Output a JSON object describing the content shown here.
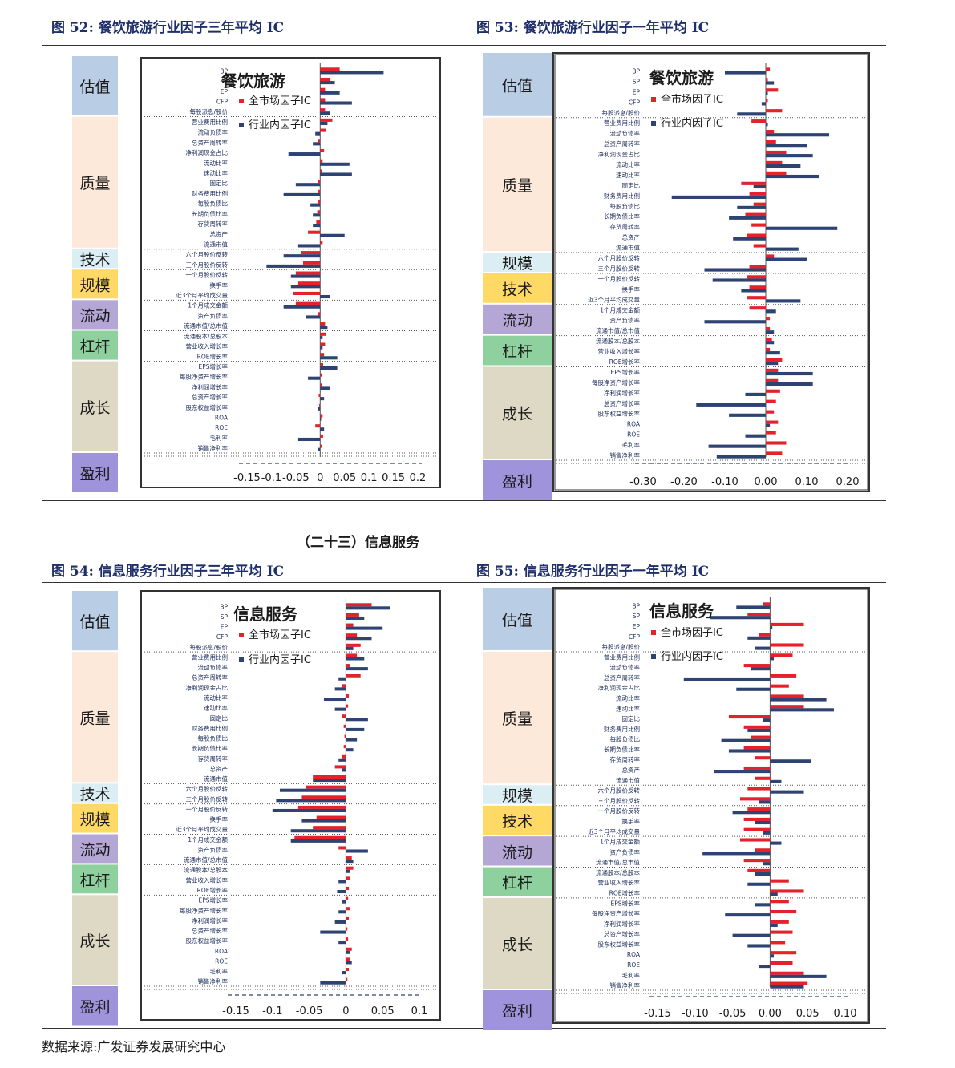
{
  "fig52": {
    "title": "图  52:  餐饮旅游行业因子三年平均 IC"
  },
  "fig53": {
    "title": "图  53:  餐饮旅游行业因子一年平均 IC"
  },
  "fig54": {
    "title": "图  54:  信息服务行业因子三年平均 IC"
  },
  "fig55": {
    "title": "图  55:  信息服务行业因子一年平均 IC"
  },
  "section_title": "（二十三）信息服务",
  "source": "数据来源:广发证券发展研究中心",
  "colors": {
    "series_market": "#e3222c",
    "series_industry": "#2e4372",
    "axis": "#333333",
    "tick": "#1a2a5a"
  },
  "chart_data": [
    {
      "type": "bar",
      "orientation": "horizontal",
      "title": "餐饮旅游",
      "legend": [
        "全市场因子IC",
        "行业内因子IC"
      ],
      "legend_position": "top-center",
      "xlim": [
        -0.15,
        0.2
      ],
      "xticks": [
        -0.15,
        -0.1,
        -0.05,
        0,
        0.05,
        0.1,
        0.15,
        0.2
      ],
      "xtick_labels": [
        "-0.15",
        "-0.1",
        "-0.05",
        "0",
        "0.05",
        "0.1",
        "0.15",
        "0.2"
      ],
      "groups": [
        {
          "name": "估值",
          "color": "#b9cde5",
          "count": 5
        },
        {
          "name": "质量",
          "color": "#fde9d9",
          "count": 13
        },
        {
          "name": "技术",
          "color": "#dbeef4",
          "count": 2
        },
        {
          "name": "规模",
          "color": "#ffd966",
          "count": 3
        },
        {
          "name": "流动",
          "color": "#b4a7d6",
          "count": 3
        },
        {
          "name": "杠杆",
          "color": "#8fd19e",
          "count": 3
        },
        {
          "name": "成长",
          "color": "#ddd9c4",
          "count": 9
        },
        {
          "name": "盈利",
          "color": "#9f94dc",
          "count": 4
        }
      ],
      "categories": [
        "BP",
        "SP",
        "EP",
        "CFP",
        "每股派息/股价",
        "营业费用比例",
        "流动负债率",
        "总资产周转率",
        "净利润现金占比",
        "流动比率",
        "速动比率",
        "固定比",
        "财务费用比例",
        "每股负债比",
        "长期负债比率",
        "存货周转率",
        "总资产",
        "流通市值",
        "六个月股价反转",
        "三个月股价反转",
        "一个月股价反转",
        "换手率",
        "近3个月平均成交量",
        "1个月成交金额",
        "资产负债率",
        "流通市值/总市值",
        "流通股本/总股本",
        "营业收入增长率",
        "ROE增长率",
        "EPS增长率",
        "每股净资产增长率",
        "净利润增长率",
        "总资产增长率",
        "股东权益增长率",
        "ROA",
        "ROE",
        "毛利率",
        "销售净利率"
      ],
      "series": [
        {
          "name": "全市场因子IC",
          "values": [
            0.04,
            0.02,
            0.01,
            0.01,
            0.01,
            0.025,
            0.012,
            -0.005,
            0.008,
            0.005,
            0.004,
            -0.004,
            -0.005,
            -0.004,
            -0.006,
            -0.008,
            -0.025,
            0.005,
            -0.04,
            -0.035,
            -0.05,
            -0.045,
            -0.055,
            -0.05,
            -0.005,
            0.01,
            0.012,
            0.01,
            0.008,
            0.006,
            0.004,
            0.003,
            -0.003,
            -0.002,
            0.005,
            -0.01,
            0.006,
            0.003
          ]
        },
        {
          "name": "行业内因子IC",
          "values": [
            0.13,
            0.03,
            0.04,
            0.065,
            0.02,
            0.015,
            -0.01,
            -0.015,
            -0.065,
            0.06,
            0.065,
            -0.05,
            -0.075,
            -0.02,
            -0.015,
            -0.015,
            0.05,
            -0.045,
            -0.075,
            -0.11,
            -0.06,
            -0.06,
            0.02,
            -0.075,
            -0.03,
            0.015,
            0.005,
            0.005,
            0.035,
            0.035,
            -0.025,
            0.02,
            0.008,
            -0.005,
            0.002,
            0.008,
            -0.045,
            -0.005
          ]
        }
      ]
    },
    {
      "type": "bar",
      "orientation": "horizontal",
      "title": "餐饮旅游",
      "legend": [
        "全市场因子IC",
        "行业内因子IC"
      ],
      "legend_position": "top-center",
      "xlim": [
        -0.3,
        0.2
      ],
      "xticks": [
        -0.3,
        -0.2,
        -0.1,
        0,
        0.1,
        0.2
      ],
      "xtick_labels": [
        "-0.30",
        "-0.20",
        "-0.10",
        "0.00",
        "0.10",
        "0.20"
      ],
      "groups": [
        {
          "name": "估值",
          "color": "#b9cde5",
          "count": 5
        },
        {
          "name": "质量",
          "color": "#fde9d9",
          "count": 13
        },
        {
          "name": "规模",
          "color": "#dbeef4",
          "count": 2
        },
        {
          "name": "技术",
          "color": "#ffd966",
          "count": 3
        },
        {
          "name": "流动",
          "color": "#b4a7d6",
          "count": 3
        },
        {
          "name": "杠杆",
          "color": "#8fd19e",
          "count": 3
        },
        {
          "name": "成长",
          "color": "#ddd9c4",
          "count": 9
        },
        {
          "name": "盈利",
          "color": "#9f94dc",
          "count": 4
        }
      ],
      "categories": [
        "BP",
        "SP",
        "EP",
        "CFP",
        "每股派息/股价",
        "营业费用比例",
        "流动负债率",
        "总资产周转率",
        "净利润现金占比",
        "流动比率",
        "速动比率",
        "固定比",
        "财务费用比例",
        "每股负债比",
        "长期负债比率",
        "存货周转率",
        "总资产",
        "流通市值",
        "六个月股价反转",
        "三个月股价反转",
        "一个月股价反转",
        "换手率",
        "近3个月平均成交量",
        "1个月成交金额",
        "资产负债率",
        "流通市值/总市值",
        "流通股本/总股本",
        "营业收入增长率",
        "ROE增长率",
        "EPS增长率",
        "每股净资产增长率",
        "净利润增长率",
        "总资产增长率",
        "股东权益增长率",
        "ROA",
        "ROE",
        "毛利率",
        "销售净利率"
      ],
      "series": [
        {
          "name": "全市场因子IC",
          "values": [
            0.01,
            0.005,
            0.03,
            0.005,
            0.04,
            -0.035,
            0.02,
            0.025,
            0.05,
            0.04,
            0.05,
            -0.06,
            -0.04,
            -0.03,
            -0.05,
            -0.035,
            -0.045,
            -0.03,
            0.02,
            -0.04,
            -0.045,
            -0.04,
            -0.045,
            -0.04,
            0.01,
            0.01,
            0.015,
            0.01,
            0.04,
            0.03,
            0.03,
            0.035,
            0.025,
            0.02,
            0.03,
            0.025,
            0.05,
            0.04
          ]
        },
        {
          "name": "行业内因子IC",
          "values": [
            -0.1,
            0.02,
            0.005,
            -0.01,
            -0.07,
            0.005,
            0.155,
            0.1,
            0.115,
            0.085,
            0.13,
            -0.03,
            -0.23,
            -0.07,
            -0.09,
            0.175,
            -0.08,
            0.08,
            0.1,
            -0.15,
            -0.13,
            -0.06,
            0.085,
            0.025,
            -0.15,
            0.02,
            0.02,
            0.035,
            0.03,
            0.115,
            0.115,
            -0.05,
            -0.17,
            -0.09,
            0.01,
            -0.05,
            -0.14,
            -0.12
          ]
        }
      ]
    },
    {
      "type": "bar",
      "orientation": "horizontal",
      "title": "信息服务",
      "legend": [
        "全市场因子IC",
        "行业内因子IC"
      ],
      "legend_position": "top-center",
      "xlim": [
        -0.15,
        0.1
      ],
      "xticks": [
        -0.15,
        -0.1,
        -0.05,
        0,
        0.05,
        0.1
      ],
      "xtick_labels": [
        "-0.15",
        "-0.1",
        "-0.05",
        "0",
        "0.05",
        "0.1"
      ],
      "groups": [
        {
          "name": "估值",
          "color": "#b9cde5",
          "count": 5
        },
        {
          "name": "质量",
          "color": "#fde9d9",
          "count": 13
        },
        {
          "name": "技术",
          "color": "#dbeef4",
          "count": 2
        },
        {
          "name": "规模",
          "color": "#ffd966",
          "count": 3
        },
        {
          "name": "流动",
          "color": "#b4a7d6",
          "count": 3
        },
        {
          "name": "杠杆",
          "color": "#8fd19e",
          "count": 3
        },
        {
          "name": "成长",
          "color": "#ddd9c4",
          "count": 9
        },
        {
          "name": "盈利",
          "color": "#9f94dc",
          "count": 4
        }
      ],
      "categories": [
        "BP",
        "SP",
        "EP",
        "CFP",
        "每股派息/股价",
        "营业费用比例",
        "流动负债率",
        "总资产周转率",
        "净利润现金占比",
        "流动比率",
        "速动比率",
        "固定比",
        "财务费用比例",
        "每股负债比",
        "长期负债比率",
        "存货周转率",
        "总资产",
        "流通市值",
        "六个月股价反转",
        "三个月股价反转",
        "一个月股价反转",
        "换手率",
        "近3个月平均成交量",
        "1个月成交金额",
        "资产负债率",
        "流通市值/总市值",
        "流通股本/总股本",
        "营业收入增长率",
        "ROE增长率",
        "EPS增长率",
        "每股净资产增长率",
        "净利润增长率",
        "总资产增长率",
        "股东权益增长率",
        "ROA",
        "ROE",
        "毛利率",
        "销售净利率"
      ],
      "series": [
        {
          "name": "全市场因子IC",
          "values": [
            0.035,
            0.018,
            0.01,
            0.015,
            0.02,
            0.015,
            0.005,
            0.02,
            -0.005,
            0.004,
            0.003,
            -0.005,
            -0.003,
            -0.002,
            -0.003,
            -0.005,
            -0.015,
            -0.045,
            -0.055,
            -0.06,
            -0.065,
            -0.04,
            -0.045,
            -0.07,
            -0.01,
            0.008,
            0.01,
            0.005,
            0.004,
            0.003,
            0.005,
            0.004,
            0.002,
            0.003,
            0.008,
            0.006,
            0.004,
            0.002
          ]
        },
        {
          "name": "行业内因子IC",
          "values": [
            0.06,
            0.025,
            0.05,
            0.035,
            0.01,
            0.025,
            0.03,
            -0.01,
            -0.015,
            -0.03,
            -0.015,
            0.03,
            0.025,
            0.015,
            0.01,
            -0.01,
            -0.005,
            -0.045,
            -0.09,
            -0.095,
            -0.1,
            -0.06,
            -0.075,
            -0.075,
            0.03,
            0.01,
            0.005,
            -0.01,
            -0.012,
            -0.005,
            -0.01,
            -0.015,
            -0.035,
            -0.01,
            0.005,
            0.008,
            -0.005,
            -0.035
          ]
        }
      ]
    },
    {
      "type": "bar",
      "orientation": "horizontal",
      "title": "信息服务",
      "legend": [
        "全市场因子IC",
        "行业内因子IC"
      ],
      "legend_position": "top-center",
      "xlim": [
        -0.15,
        0.1
      ],
      "xticks": [
        -0.15,
        -0.1,
        -0.05,
        0,
        0.05,
        0.1
      ],
      "xtick_labels": [
        "-0.15",
        "-0.10",
        "-0.05",
        "0.00",
        "0.05",
        "0.10"
      ],
      "groups": [
        {
          "name": "估值",
          "color": "#b9cde5",
          "count": 5
        },
        {
          "name": "质量",
          "color": "#fde9d9",
          "count": 13
        },
        {
          "name": "规模",
          "color": "#dbeef4",
          "count": 2
        },
        {
          "name": "技术",
          "color": "#ffd966",
          "count": 3
        },
        {
          "name": "流动",
          "color": "#b4a7d6",
          "count": 3
        },
        {
          "name": "杠杆",
          "color": "#8fd19e",
          "count": 3
        },
        {
          "name": "成长",
          "color": "#ddd9c4",
          "count": 9
        },
        {
          "name": "盈利",
          "color": "#9f94dc",
          "count": 4
        }
      ],
      "categories": [
        "BP",
        "SP",
        "EP",
        "CFP",
        "每股派息/股价",
        "营业费用比例",
        "流动负债率",
        "总资产周转率",
        "净利润现金占比",
        "流动比率",
        "速动比率",
        "固定比",
        "财务费用比例",
        "每股负债比",
        "长期负债比率",
        "存货周转率",
        "总资产",
        "流通市值",
        "六个月股价反转",
        "三个月股价反转",
        "一个月股价反转",
        "换手率",
        "近3个月平均成交量",
        "1个月成交金额",
        "资产负债率",
        "流通市值/总市值",
        "流通股本/总股本",
        "营业收入增长率",
        "ROE增长率",
        "EPS增长率",
        "每股净资产增长率",
        "净利润增长率",
        "总资产增长率",
        "股东权益增长率",
        "ROA",
        "ROE",
        "毛利率",
        "销售净利率"
      ],
      "series": [
        {
          "name": "全市场因子IC",
          "values": [
            -0.01,
            -0.03,
            0.045,
            -0.015,
            0.045,
            0.03,
            -0.035,
            0.035,
            0.025,
            0.045,
            0.045,
            -0.055,
            -0.035,
            -0.025,
            -0.035,
            -0.02,
            -0.035,
            -0.02,
            -0.03,
            -0.04,
            -0.03,
            -0.035,
            -0.035,
            -0.04,
            -0.02,
            -0.035,
            -0.03,
            0.025,
            0.045,
            0.025,
            0.035,
            0.025,
            0.03,
            0.02,
            0.035,
            0.03,
            0.045,
            0.05
          ]
        },
        {
          "name": "行业内因子IC",
          "values": [
            -0.045,
            -0.08,
            0.003,
            -0.03,
            -0.02,
            0.005,
            -0.025,
            -0.115,
            -0.045,
            0.075,
            0.085,
            -0.01,
            -0.03,
            -0.065,
            -0.055,
            0.055,
            -0.075,
            0.015,
            0.045,
            -0.015,
            -0.05,
            -0.02,
            -0.01,
            0.015,
            -0.09,
            -0.01,
            -0.02,
            -0.03,
            0.01,
            -0.02,
            -0.06,
            0.01,
            -0.05,
            -0.03,
            0.005,
            -0.015,
            0.075,
            0.045
          ]
        }
      ]
    }
  ]
}
